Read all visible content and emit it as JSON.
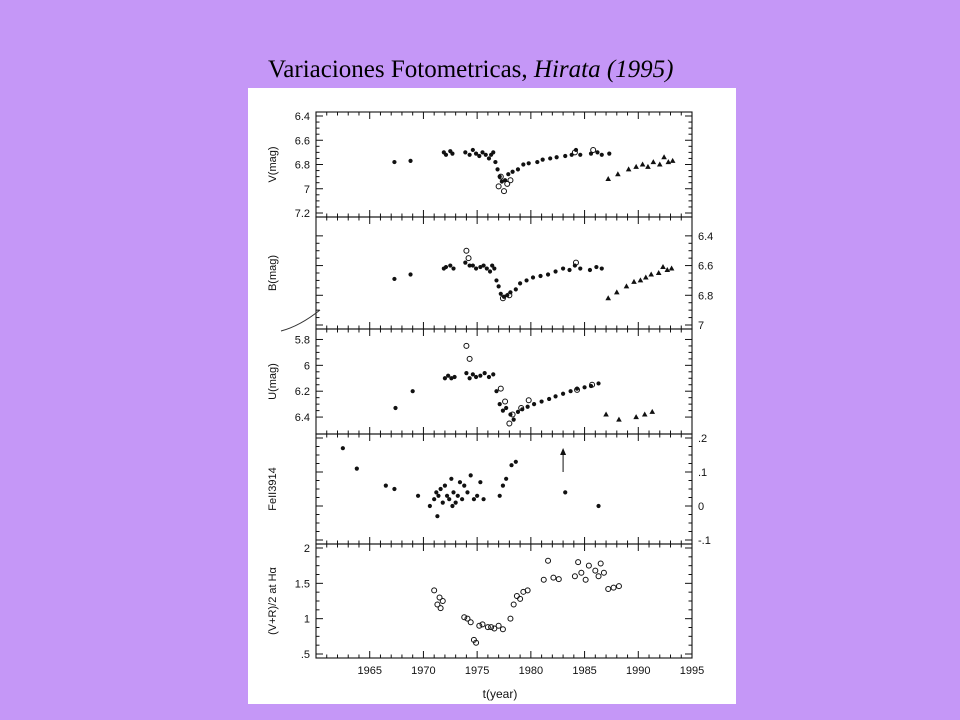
{
  "slide": {
    "title_plain": "Variaciones Fotometricas, ",
    "title_italic": "Hirata (1995)"
  },
  "colors": {
    "background": "#c597f7",
    "plate": "#ffffff",
    "ink": "#111111"
  },
  "chart_data": [
    {
      "type": "scatter",
      "ylabel": "V(mag)",
      "ylim": [
        7.2,
        6.4
      ],
      "y_axis_side": "left",
      "y_tick_labels": [
        "6.4",
        "6.6",
        "6.8",
        "7",
        "7.2"
      ],
      "y_tick_values": [
        6.4,
        6.6,
        6.8,
        7.0,
        7.2
      ],
      "series": [
        {
          "marker": "filled-circle",
          "points": [
            [
              1967.3,
              6.78
            ],
            [
              1968.8,
              6.77
            ],
            [
              1971.9,
              6.7
            ],
            [
              1972.1,
              6.72
            ],
            [
              1972.5,
              6.69
            ],
            [
              1972.7,
              6.71
            ],
            [
              1973.9,
              6.7
            ],
            [
              1974.3,
              6.72
            ],
            [
              1974.6,
              6.68
            ],
            [
              1974.9,
              6.71
            ],
            [
              1975.2,
              6.73
            ],
            [
              1975.5,
              6.7
            ],
            [
              1975.8,
              6.72
            ],
            [
              1976.1,
              6.75
            ],
            [
              1976.3,
              6.72
            ],
            [
              1976.5,
              6.7
            ],
            [
              1976.7,
              6.78
            ],
            [
              1976.9,
              6.84
            ],
            [
              1977.1,
              6.9
            ],
            [
              1977.3,
              6.94
            ],
            [
              1977.6,
              6.93
            ],
            [
              1977.9,
              6.88
            ],
            [
              1978.3,
              6.86
            ],
            [
              1978.8,
              6.84
            ],
            [
              1979.3,
              6.8
            ],
            [
              1979.8,
              6.79
            ],
            [
              1980.6,
              6.78
            ],
            [
              1981.1,
              6.76
            ],
            [
              1981.8,
              6.75
            ],
            [
              1982.4,
              6.74
            ],
            [
              1983.2,
              6.73
            ],
            [
              1983.8,
              6.72
            ],
            [
              1984.2,
              6.68
            ],
            [
              1984.6,
              6.72
            ],
            [
              1985.6,
              6.71
            ],
            [
              1986.2,
              6.7
            ],
            [
              1986.6,
              6.72
            ],
            [
              1987.3,
              6.71
            ]
          ]
        },
        {
          "marker": "open-circle",
          "points": [
            [
              1977.0,
              6.98
            ],
            [
              1977.2,
              6.9
            ],
            [
              1977.5,
              7.02
            ],
            [
              1977.8,
              6.96
            ],
            [
              1978.1,
              6.93
            ],
            [
              1984.1,
              6.7
            ],
            [
              1985.8,
              6.68
            ]
          ]
        },
        {
          "marker": "triangle",
          "points": [
            [
              1987.2,
              6.92
            ],
            [
              1988.1,
              6.88
            ],
            [
              1989.1,
              6.84
            ],
            [
              1989.8,
              6.82
            ],
            [
              1990.4,
              6.8
            ],
            [
              1990.9,
              6.82
            ],
            [
              1991.4,
              6.78
            ],
            [
              1992.0,
              6.8
            ],
            [
              1992.4,
              6.74
            ],
            [
              1992.8,
              6.78
            ],
            [
              1993.2,
              6.77
            ]
          ]
        }
      ]
    },
    {
      "type": "scatter",
      "ylabel": "B(mag)",
      "ylim": [
        7.0,
        6.3
      ],
      "y_axis_side": "right",
      "y_tick_labels": [
        "6.4",
        "6.6",
        "6.8",
        "7"
      ],
      "y_tick_values": [
        6.4,
        6.6,
        6.8,
        7.0
      ],
      "series": [
        {
          "marker": "filled-circle",
          "points": [
            [
              1967.3,
              6.69
            ],
            [
              1968.8,
              6.66
            ],
            [
              1971.9,
              6.62
            ],
            [
              1972.1,
              6.61
            ],
            [
              1972.5,
              6.6
            ],
            [
              1972.8,
              6.62
            ],
            [
              1973.9,
              6.58
            ],
            [
              1974.3,
              6.6
            ],
            [
              1974.6,
              6.6
            ],
            [
              1974.9,
              6.62
            ],
            [
              1975.3,
              6.61
            ],
            [
              1975.6,
              6.6
            ],
            [
              1975.9,
              6.62
            ],
            [
              1976.2,
              6.64
            ],
            [
              1976.4,
              6.6
            ],
            [
              1976.6,
              6.62
            ],
            [
              1976.8,
              6.7
            ],
            [
              1977.0,
              6.74
            ],
            [
              1977.2,
              6.79
            ],
            [
              1977.5,
              6.81
            ],
            [
              1977.8,
              6.8
            ],
            [
              1978.1,
              6.78
            ],
            [
              1978.6,
              6.76
            ],
            [
              1979.0,
              6.72
            ],
            [
              1979.6,
              6.7
            ],
            [
              1980.2,
              6.68
            ],
            [
              1980.9,
              6.67
            ],
            [
              1981.6,
              6.66
            ],
            [
              1982.3,
              6.64
            ],
            [
              1983.0,
              6.62
            ],
            [
              1983.6,
              6.63
            ],
            [
              1984.1,
              6.6
            ],
            [
              1984.6,
              6.62
            ],
            [
              1985.5,
              6.63
            ],
            [
              1986.1,
              6.61
            ],
            [
              1986.6,
              6.62
            ]
          ]
        },
        {
          "marker": "open-circle",
          "points": [
            [
              1974.0,
              6.5
            ],
            [
              1974.2,
              6.55
            ],
            [
              1977.4,
              6.82
            ],
            [
              1978.0,
              6.8
            ],
            [
              1984.2,
              6.58
            ]
          ]
        },
        {
          "marker": "triangle",
          "points": [
            [
              1987.2,
              6.82
            ],
            [
              1988.0,
              6.78
            ],
            [
              1988.9,
              6.74
            ],
            [
              1989.6,
              6.71
            ],
            [
              1990.2,
              6.7
            ],
            [
              1990.7,
              6.68
            ],
            [
              1991.2,
              6.66
            ],
            [
              1991.9,
              6.65
            ],
            [
              1992.3,
              6.61
            ],
            [
              1992.7,
              6.63
            ],
            [
              1993.1,
              6.62
            ]
          ]
        }
      ]
    },
    {
      "type": "scatter",
      "ylabel": "U(mag)",
      "ylim": [
        6.5,
        5.75
      ],
      "y_axis_side": "left",
      "y_tick_labels": [
        "5.8",
        "6",
        "6.2",
        "6.4"
      ],
      "y_tick_values": [
        5.8,
        6.0,
        6.2,
        6.4
      ],
      "series": [
        {
          "marker": "filled-circle",
          "points": [
            [
              1967.4,
              6.33
            ],
            [
              1969.0,
              6.2
            ],
            [
              1972.0,
              6.1
            ],
            [
              1972.3,
              6.08
            ],
            [
              1972.6,
              6.1
            ],
            [
              1972.9,
              6.09
            ],
            [
              1974.0,
              6.06
            ],
            [
              1974.3,
              6.1
            ],
            [
              1974.6,
              6.07
            ],
            [
              1974.9,
              6.09
            ],
            [
              1975.3,
              6.08
            ],
            [
              1975.7,
              6.06
            ],
            [
              1976.1,
              6.09
            ],
            [
              1976.5,
              6.07
            ],
            [
              1976.8,
              6.2
            ],
            [
              1977.1,
              6.3
            ],
            [
              1977.4,
              6.35
            ],
            [
              1977.7,
              6.33
            ],
            [
              1978.1,
              6.38
            ],
            [
              1978.4,
              6.42
            ],
            [
              1978.8,
              6.36
            ],
            [
              1979.2,
              6.34
            ],
            [
              1979.7,
              6.32
            ],
            [
              1980.3,
              6.3
            ],
            [
              1981.0,
              6.28
            ],
            [
              1981.7,
              6.26
            ],
            [
              1982.3,
              6.24
            ],
            [
              1983.0,
              6.22
            ],
            [
              1983.7,
              6.2
            ],
            [
              1984.3,
              6.18
            ],
            [
              1985.0,
              6.17
            ],
            [
              1985.6,
              6.16
            ],
            [
              1986.3,
              6.14
            ]
          ]
        },
        {
          "marker": "open-circle",
          "points": [
            [
              1974.0,
              5.85
            ],
            [
              1974.3,
              5.95
            ],
            [
              1977.2,
              6.18
            ],
            [
              1977.6,
              6.28
            ],
            [
              1978.0,
              6.45
            ],
            [
              1978.3,
              6.38
            ],
            [
              1979.1,
              6.33
            ],
            [
              1979.8,
              6.27
            ],
            [
              1984.3,
              6.19
            ],
            [
              1985.7,
              6.15
            ]
          ]
        },
        {
          "marker": "triangle",
          "points": [
            [
              1987.0,
              6.38
            ],
            [
              1988.2,
              6.42
            ],
            [
              1989.8,
              6.4
            ],
            [
              1990.6,
              6.38
            ],
            [
              1991.3,
              6.36
            ]
          ]
        }
      ]
    },
    {
      "type": "scatter",
      "ylabel": "FeII3914",
      "ylim": [
        -0.1,
        0.2
      ],
      "y_axis_side": "right",
      "y_tick_labels": [
        ".2",
        ".1",
        "0",
        "-.1"
      ],
      "y_tick_values": [
        0.2,
        0.1,
        0.0,
        -0.1
      ],
      "annotation": "arrow at 1983",
      "series": [
        {
          "marker": "filled-circle",
          "points": [
            [
              1962.5,
              0.17
            ],
            [
              1963.8,
              0.11
            ],
            [
              1966.5,
              0.06
            ],
            [
              1967.3,
              0.05
            ],
            [
              1969.5,
              0.03
            ],
            [
              1970.6,
              0.0
            ],
            [
              1971.0,
              0.02
            ],
            [
              1971.2,
              0.04
            ],
            [
              1971.4,
              0.03
            ],
            [
              1971.6,
              0.05
            ],
            [
              1971.8,
              0.01
            ],
            [
              1972.0,
              0.06
            ],
            [
              1972.2,
              0.03
            ],
            [
              1972.4,
              0.02
            ],
            [
              1972.6,
              0.08
            ],
            [
              1972.8,
              0.04
            ],
            [
              1973.0,
              0.01
            ],
            [
              1973.2,
              0.03
            ],
            [
              1973.4,
              0.07
            ],
            [
              1973.6,
              0.02
            ],
            [
              1973.8,
              0.06
            ],
            [
              1974.1,
              0.04
            ],
            [
              1974.4,
              0.09
            ],
            [
              1974.7,
              0.02
            ],
            [
              1975.0,
              0.03
            ],
            [
              1975.3,
              0.07
            ],
            [
              1975.6,
              0.02
            ],
            [
              1977.1,
              0.03
            ],
            [
              1977.4,
              0.06
            ],
            [
              1977.7,
              0.08
            ],
            [
              1978.2,
              0.12
            ],
            [
              1978.6,
              0.13
            ],
            [
              1983.2,
              0.04
            ],
            [
              1986.3,
              0.0
            ],
            [
              1971.3,
              -0.03
            ],
            [
              1972.7,
              0.0
            ]
          ]
        }
      ]
    },
    {
      "type": "scatter",
      "ylabel": "(V+R)/2 at Hα",
      "ylim": [
        0.5,
        2.0
      ],
      "y_axis_side": "left",
      "y_tick_labels": [
        ".5",
        "1",
        "1.5",
        "2"
      ],
      "y_tick_values": [
        0.5,
        1.0,
        1.5,
        2.0
      ],
      "series": [
        {
          "marker": "open-circle",
          "points": [
            [
              1971.0,
              1.4
            ],
            [
              1971.3,
              1.2
            ],
            [
              1971.5,
              1.3
            ],
            [
              1971.6,
              1.15
            ],
            [
              1971.8,
              1.25
            ],
            [
              1973.8,
              1.02
            ],
            [
              1974.1,
              1.0
            ],
            [
              1974.4,
              0.95
            ],
            [
              1974.7,
              0.7
            ],
            [
              1974.9,
              0.66
            ],
            [
              1975.2,
              0.9
            ],
            [
              1975.5,
              0.92
            ],
            [
              1976.0,
              0.88
            ],
            [
              1976.3,
              0.88
            ],
            [
              1976.6,
              0.86
            ],
            [
              1977.0,
              0.9
            ],
            [
              1977.4,
              0.85
            ],
            [
              1978.1,
              1.0
            ],
            [
              1978.4,
              1.2
            ],
            [
              1978.7,
              1.32
            ],
            [
              1979.0,
              1.28
            ],
            [
              1979.3,
              1.38
            ],
            [
              1979.7,
              1.4
            ],
            [
              1981.2,
              1.55
            ],
            [
              1981.6,
              1.82
            ],
            [
              1982.1,
              1.58
            ],
            [
              1982.6,
              1.56
            ],
            [
              1984.1,
              1.6
            ],
            [
              1984.4,
              1.8
            ],
            [
              1984.7,
              1.65
            ],
            [
              1985.1,
              1.55
            ],
            [
              1985.4,
              1.75
            ],
            [
              1986.0,
              1.68
            ],
            [
              1986.3,
              1.6
            ],
            [
              1986.5,
              1.78
            ],
            [
              1986.8,
              1.65
            ],
            [
              1987.2,
              1.42
            ],
            [
              1987.7,
              1.44
            ],
            [
              1988.2,
              1.46
            ]
          ]
        }
      ]
    }
  ],
  "shared_x": {
    "xlabel": "t(year)",
    "xlim": [
      1960,
      1995
    ],
    "tick_labels": [
      "1965",
      "1970",
      "1975",
      "1980",
      "1985",
      "1990",
      "1995"
    ],
    "tick_values": [
      1965,
      1970,
      1975,
      1980,
      1985,
      1990,
      1995
    ]
  }
}
